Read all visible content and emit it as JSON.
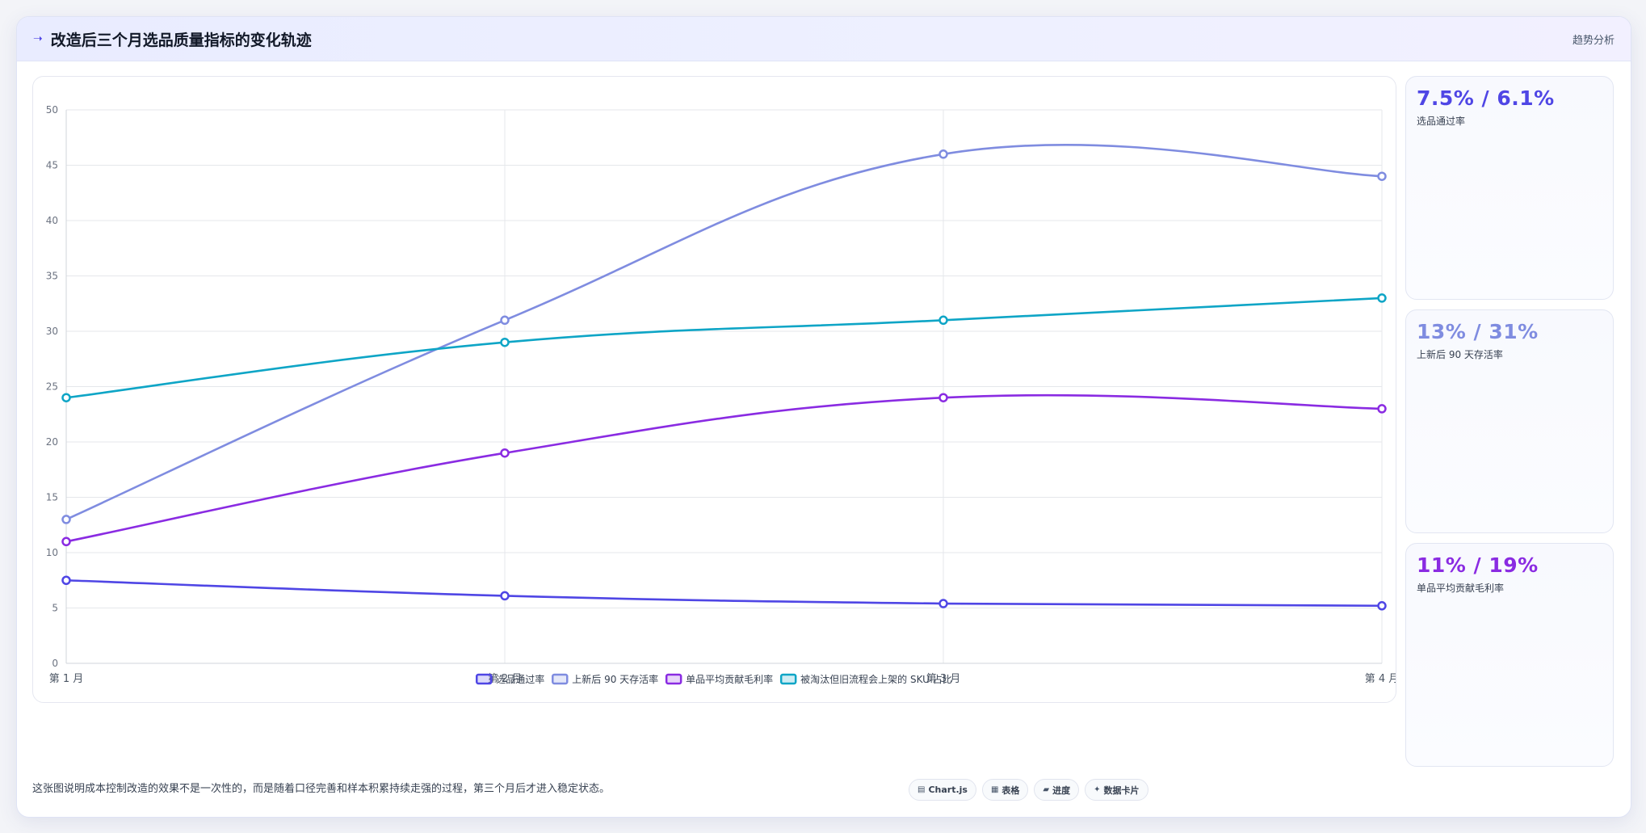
{
  "header": {
    "title": "改造后三个月选品质量指标的变化轨迹",
    "tag": "趋势分析"
  },
  "chart_data": {
    "type": "line",
    "categories": [
      "第 1 月",
      "第 2 月",
      "第 3 月",
      "第 4 月"
    ],
    "ylim": [
      0,
      50
    ],
    "yticks": [
      0,
      5,
      10,
      15,
      20,
      25,
      30,
      35,
      40,
      45,
      50
    ],
    "grid": true,
    "legend": "bottom",
    "series": [
      {
        "name": "选品通过率",
        "values": [
          7.5,
          6.1,
          5.4,
          5.2
        ],
        "color": "#4f46e5"
      },
      {
        "name": "上新后 90 天存活率",
        "values": [
          13,
          31,
          46,
          44
        ],
        "color": "#7f8ce0"
      },
      {
        "name": "单品平均贡献毛利率",
        "values": [
          11,
          19,
          24,
          23
        ],
        "color": "#8a2be2"
      },
      {
        "name": "被淘汰但旧流程会上架的 SKU 占比",
        "values": [
          24,
          29,
          31,
          33
        ],
        "color": "#0ea5c6"
      }
    ]
  },
  "kpis": [
    {
      "value": "7.5% / 6.1%",
      "label": "选品通过率",
      "color": "#4f46e5"
    },
    {
      "value": "13% / 31%",
      "label": "上新后 90 天存活率",
      "color": "#7f8ce0"
    },
    {
      "value": "11% / 19%",
      "label": "单品平均贡献毛利率",
      "color": "#8a2be2"
    }
  ],
  "footer": {
    "note": "这张图说明成本控制改造的效果不是一次性的，而是随着口径完善和样本积累持续走强的过程，第三个月后才进入稳定状态。",
    "buttons": [
      {
        "icon": "chart-icon",
        "glyph": "▤",
        "label": "Chart.js"
      },
      {
        "icon": "table-icon",
        "glyph": "▦",
        "label": "表格"
      },
      {
        "icon": "progress-icon",
        "glyph": "▰",
        "label": "进度"
      },
      {
        "icon": "sparkle-icon",
        "glyph": "✦",
        "label": "数据卡片"
      }
    ]
  }
}
